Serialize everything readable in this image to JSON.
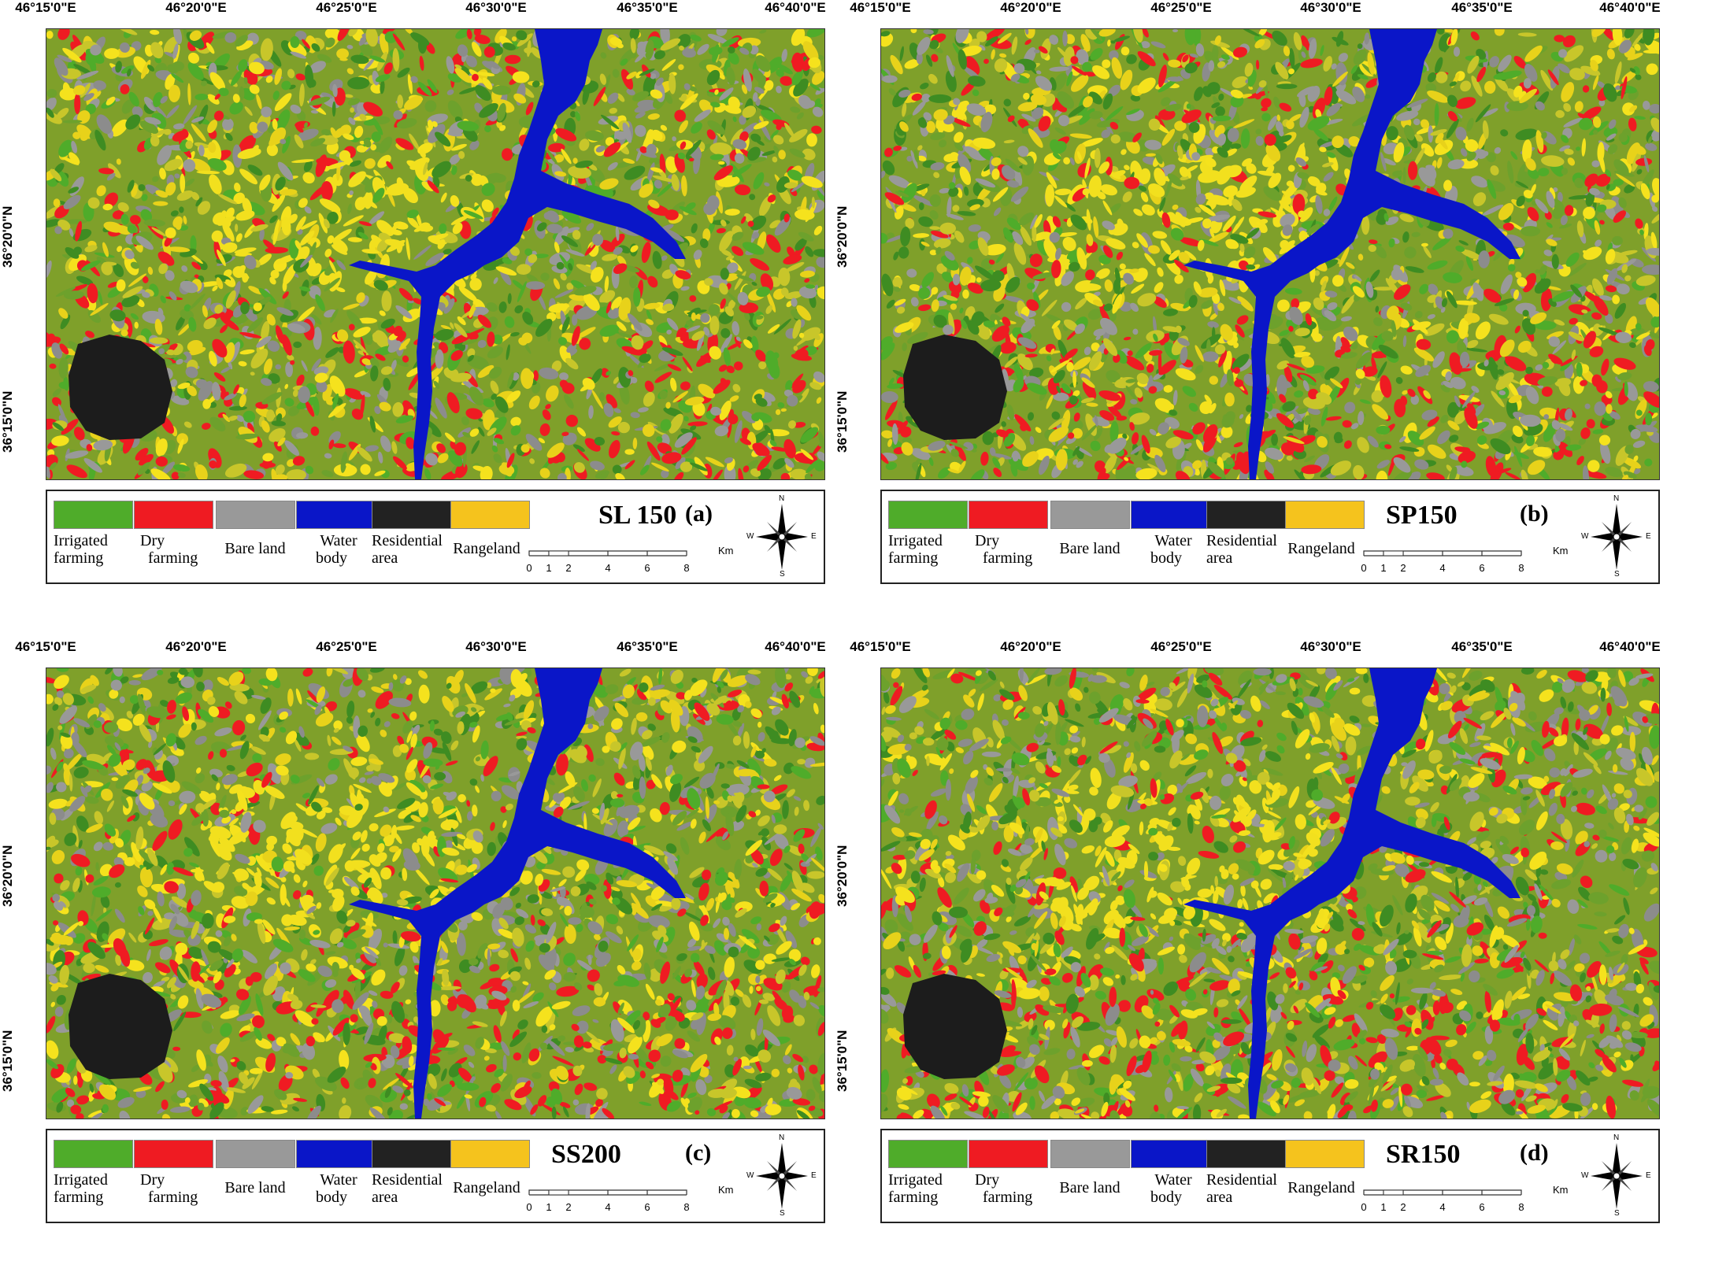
{
  "longitude_labels": [
    "46°15'0\"E",
    "46°20'0\"E",
    "46°25'0\"E",
    "46°30'0\"E",
    "46°35'0\"E",
    "46°40'0\"E"
  ],
  "latitude_labels": [
    "36°20'0\"N",
    "36°15'0\"N"
  ],
  "legend_classes": [
    {
      "line1": "Irrigated",
      "line2": "farming",
      "color": "#4fac2a"
    },
    {
      "line1": "Dry",
      "line2": "farming",
      "color": "#ef1b22"
    },
    {
      "line1": "Bare land",
      "line2": "",
      "color": "#999999"
    },
    {
      "line1": "Water",
      "line2": "body",
      "color": "#0a16c8"
    },
    {
      "line1": "Residential",
      "line2": "area",
      "color": "#222222"
    },
    {
      "line1": "Rangeland",
      "line2": "",
      "color": "#f5c31d"
    }
  ],
  "scale_bar": {
    "ticks": [
      "0",
      "1",
      "2",
      "4",
      "6",
      "8"
    ],
    "unit": "Km"
  },
  "compass": {
    "n": "N",
    "s": "S",
    "e": "E",
    "w": "W"
  },
  "panels": [
    {
      "title": "SL 150",
      "letter": "(a)"
    },
    {
      "title": "SP150",
      "letter": "(b)"
    },
    {
      "title": "SS200",
      "letter": "(c)"
    },
    {
      "title": "SR150",
      "letter": "(d)"
    }
  ]
}
